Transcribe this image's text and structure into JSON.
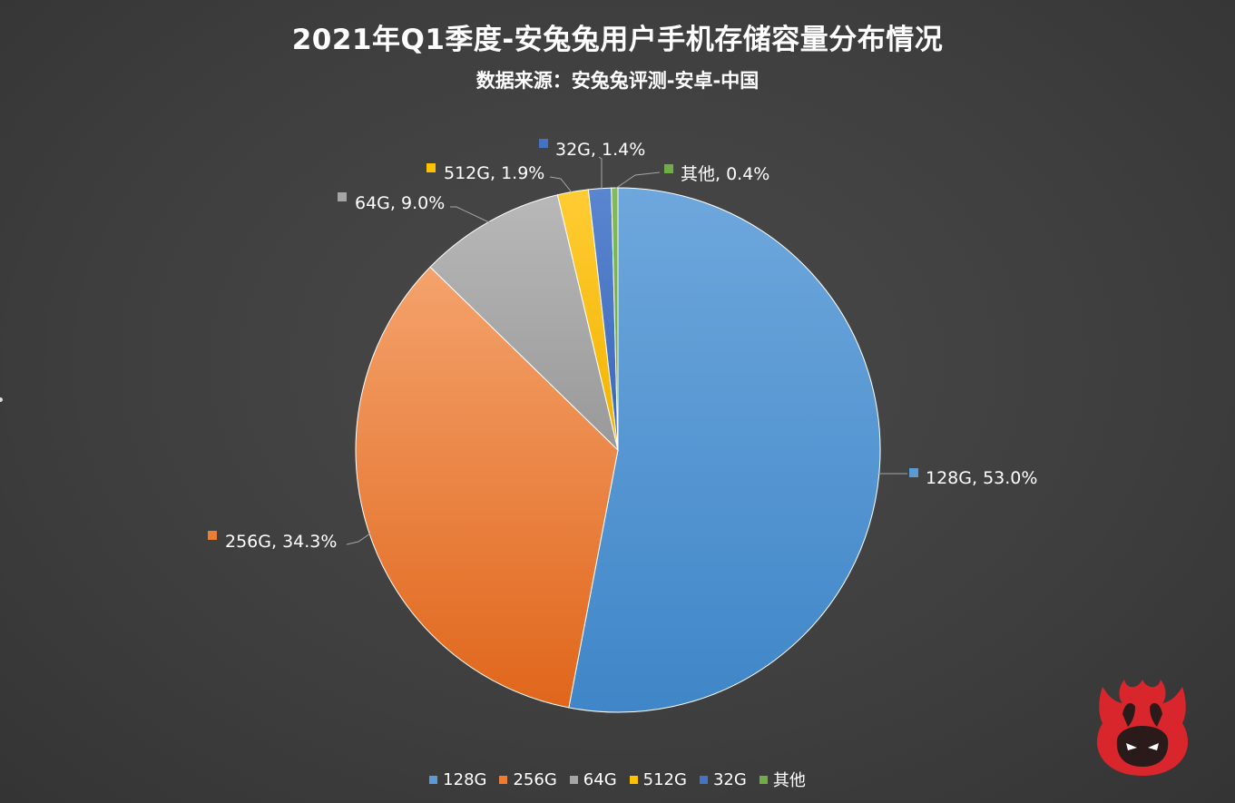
{
  "chart_data": {
    "type": "pie",
    "title": "2021年Q1季度-安兔兔用户手机存储容量分布情况",
    "subtitle": "数据来源：安兔兔评测-安卓-中国",
    "slices": [
      {
        "name": "128G",
        "value": 53.0,
        "label": "128G, 53.0%",
        "color": "#5b9bd5"
      },
      {
        "name": "256G",
        "value": 34.3,
        "label": "256G, 34.3%",
        "color": "#ed7d31"
      },
      {
        "name": "64G",
        "value": 9.0,
        "label": "64G, 9.0%",
        "color": "#a5a5a5"
      },
      {
        "name": "512G",
        "value": 1.9,
        "label": "512G, 1.9%",
        "color": "#ffc000"
      },
      {
        "name": "32G",
        "value": 1.4,
        "label": "32G, 1.4%",
        "color": "#4472c4"
      },
      {
        "name": "其他",
        "value": 0.4,
        "label": "其他, 0.4%",
        "color": "#70ad47"
      }
    ],
    "legend_position": "bottom"
  },
  "colors": {
    "background": "#3f3f3f",
    "text": "#ffffff",
    "logo_red": "#d9262c"
  },
  "icons": {
    "logo": "antutu-logo-icon"
  }
}
